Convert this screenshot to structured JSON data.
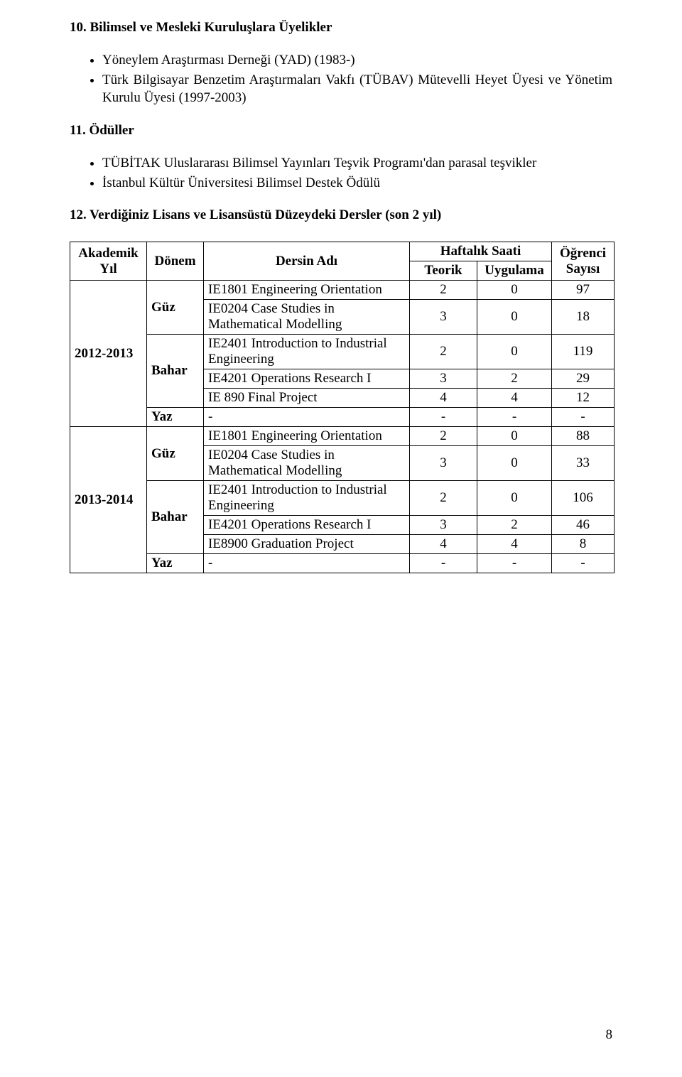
{
  "section10": {
    "heading": "10. Bilimsel ve Mesleki Kuruluşlara Üyelikler",
    "items": [
      "Yöneylem Araştırması Derneği (YAD) (1983-)",
      "Türk Bilgisayar Benzetim Araştırmaları Vakfı (TÜBAV) Mütevelli Heyet Üyesi ve Yönetim Kurulu Üyesi (1997-2003)"
    ]
  },
  "section11": {
    "heading": "11. Ödüller",
    "items": [
      "TÜBİTAK Uluslararası Bilimsel Yayınları Teşvik Programı'dan parasal teşvikler",
      "İstanbul Kültür Üniversitesi Bilimsel Destek Ödülü"
    ]
  },
  "section12": {
    "heading": "12. Verdiğiniz Lisans ve Lisansüstü Düzeydeki Dersler (son 2 yıl)"
  },
  "table": {
    "headers": {
      "year": "Akademik Yıl",
      "term": "Dönem",
      "course": "Dersin Adı",
      "weekly": "Haftalık Saati",
      "teorik": "Teorik",
      "uygulama": "Uygulama",
      "students": "Öğrenci Sayısı"
    },
    "years": [
      {
        "year": "2012-2013",
        "terms": [
          {
            "term": "Güz",
            "rows": [
              {
                "course": "IE1801 Engineering Orientation",
                "t": "2",
                "u": "0",
                "s": "97"
              },
              {
                "course": "IE0204 Case Studies in Mathematical Modelling",
                "t": "3",
                "u": "0",
                "s": "18"
              }
            ]
          },
          {
            "term": "Bahar",
            "rows": [
              {
                "course": "IE2401 Introduction to Industrial Engineering",
                "t": "2",
                "u": "0",
                "s": "119"
              },
              {
                "course": "IE4201 Operations Research I",
                "t": "3",
                "u": "2",
                "s": "29"
              },
              {
                "course": "IE 890  Final Project",
                "t": "4",
                "u": "4",
                "s": "12"
              }
            ]
          },
          {
            "term": "Yaz",
            "rows": [
              {
                "course": "-",
                "t": "-",
                "u": "-",
                "s": "-"
              }
            ]
          }
        ]
      },
      {
        "year": "2013-2014",
        "terms": [
          {
            "term": "Güz",
            "rows": [
              {
                "course": "IE1801 Engineering Orientation",
                "t": "2",
                "u": "0",
                "s": "88"
              },
              {
                "course": "IE0204 Case Studies in Mathematical Modelling",
                "t": "3",
                "u": "0",
                "s": "33"
              }
            ]
          },
          {
            "term": "Bahar",
            "rows": [
              {
                "course": "IE2401 Introduction to Industrial Engineering",
                "t": "2",
                "u": "0",
                "s": "106"
              },
              {
                "course": "IE4201 Operations Research I",
                "t": "3",
                "u": "2",
                "s": "46"
              },
              {
                "course": "IE8900 Graduation Project",
                "t": "4",
                "u": "4",
                "s": "8"
              }
            ]
          },
          {
            "term": "Yaz",
            "rows": [
              {
                "course": "-",
                "t": "-",
                "u": "-",
                "s": "-"
              }
            ]
          }
        ]
      }
    ]
  },
  "pageNumber": "8"
}
